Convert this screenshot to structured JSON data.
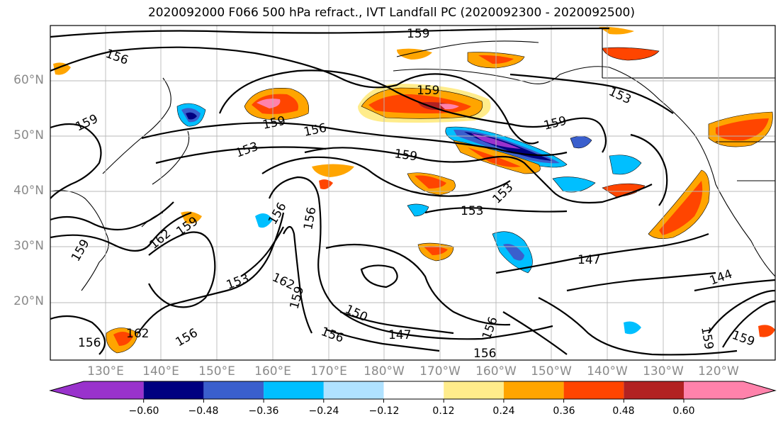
{
  "title": "2020092000 F066 500 hPa refract., IVT Landfall PC (2020092300 - 2020092500)",
  "latitude_labels": [
    "60°N",
    "50°N",
    "40°N",
    "30°N",
    "20°N"
  ],
  "longitude_labels": [
    "130°E",
    "140°E",
    "150°E",
    "160°E",
    "170°E",
    "180°W",
    "170°W",
    "160°W",
    "150°W",
    "140°W",
    "130°W",
    "120°W"
  ],
  "contour_labels": [
    "159",
    "156",
    "159",
    "159",
    "159",
    "156",
    "153",
    "159",
    "153",
    "156",
    "159",
    "162",
    "159",
    "156",
    "153",
    "153",
    "162",
    "159",
    "150",
    "156",
    "147",
    "156",
    "147",
    "144",
    "159",
    "162",
    "156",
    "156",
    "159",
    "156",
    "153",
    "159"
  ],
  "colorbar": {
    "ticks": [
      "−0.60",
      "−0.48",
      "−0.36",
      "−0.24",
      "−0.12",
      "0.12",
      "0.24",
      "0.36",
      "0.48",
      "0.60"
    ],
    "colors": [
      "#9932CC",
      "#000080",
      "#3A5FCD",
      "#00BFFF",
      "#B0E2FF",
      "#FFFFFF",
      "#FFEC8B",
      "#FFA500",
      "#FF4500",
      "#B22222",
      "#FF82AB"
    ]
  }
}
